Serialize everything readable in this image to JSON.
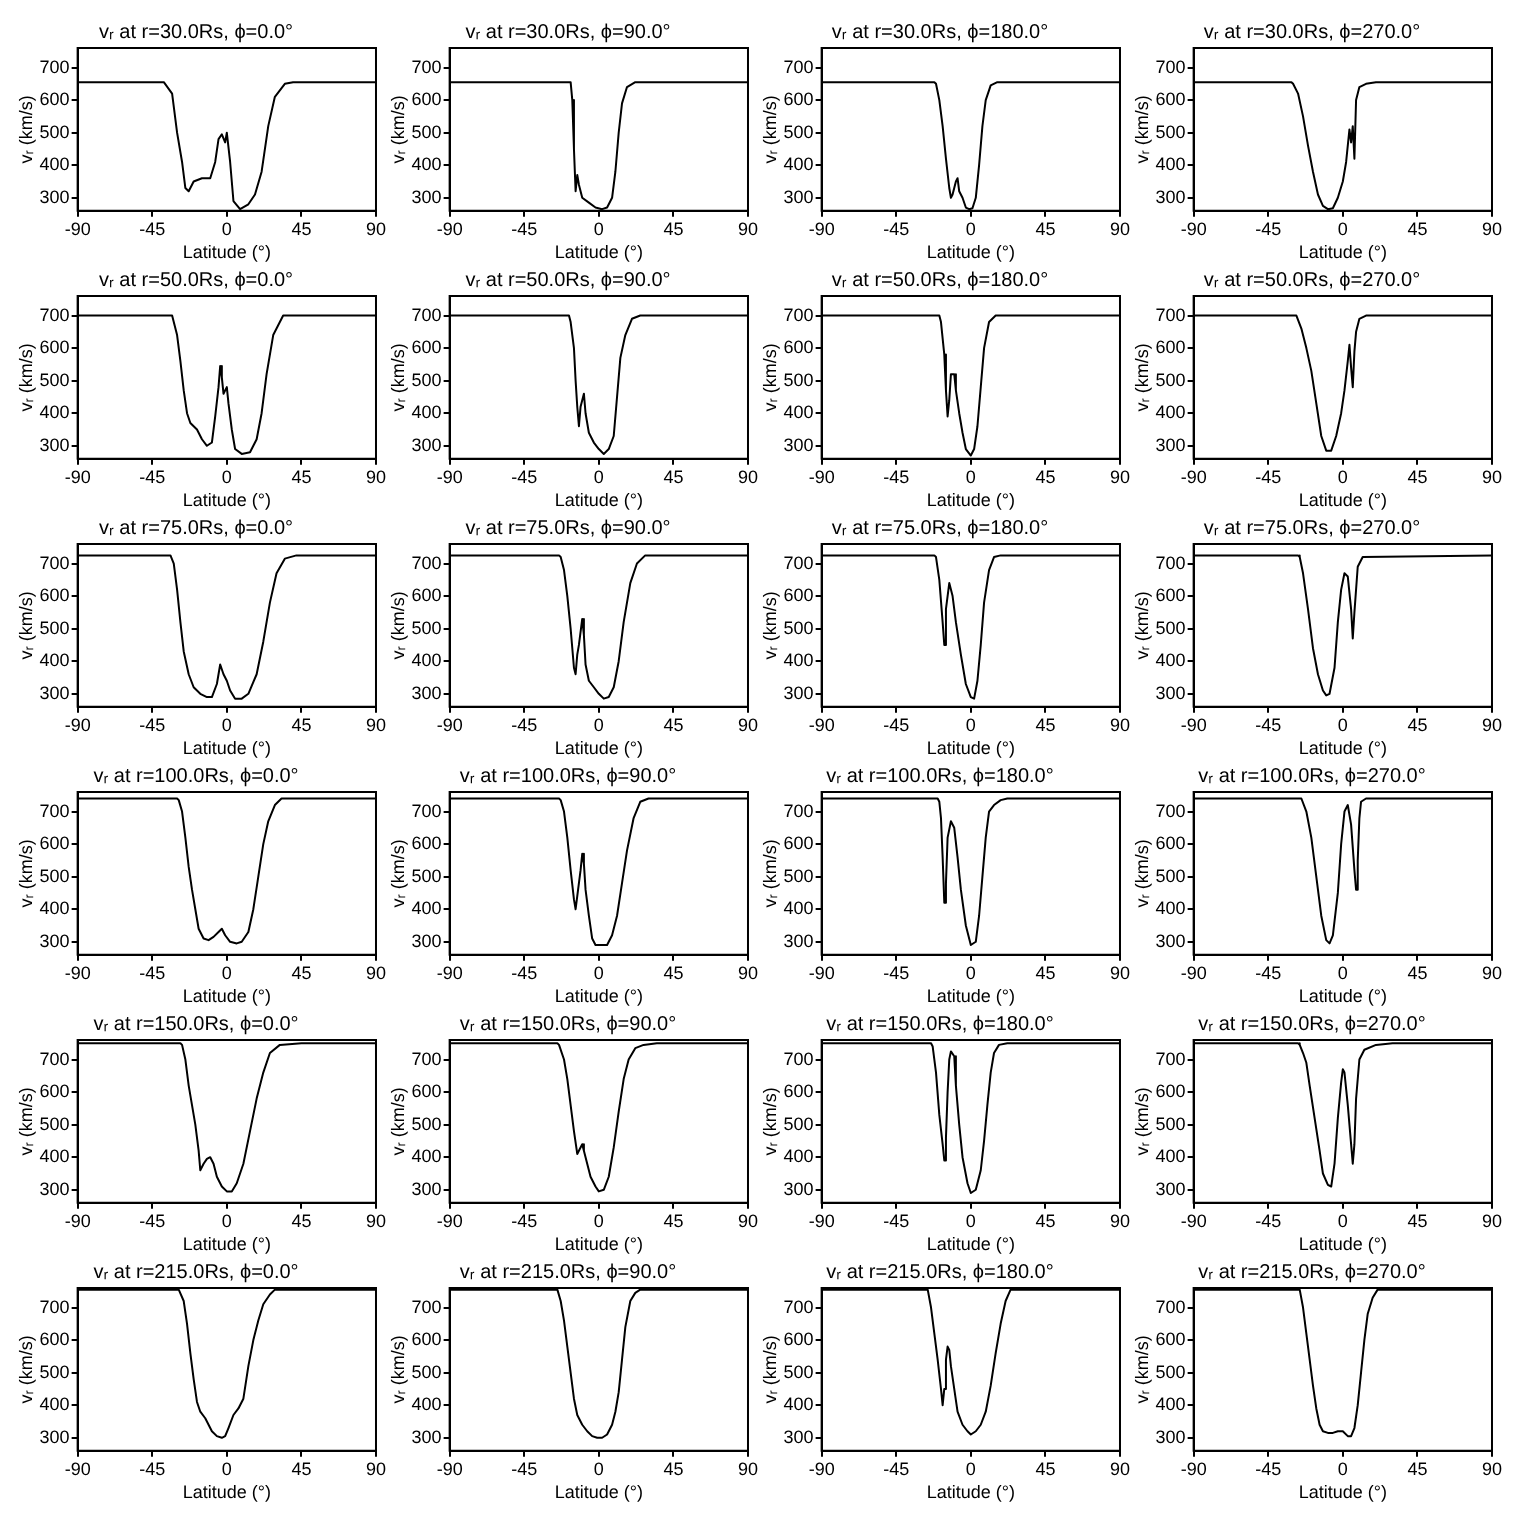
{
  "chart_data": [
    {
      "type": "line",
      "title": "vᵣ at r=30.0Rs, ϕ=0.0°",
      "xlabel": "Latitude (°)",
      "ylabel": "vᵣ (km/s)",
      "xlim": [
        -90,
        90
      ],
      "xticks": [
        -90,
        -45,
        0,
        45,
        90
      ],
      "ylim": [
        260,
        760
      ],
      "yticks": [
        300,
        400,
        500,
        600,
        700
      ],
      "marker": "none",
      "series": [
        {
          "color": "#000000",
          "x": [
            -90,
            -38,
            -33,
            -30,
            -27,
            -25,
            -23,
            -20,
            -15,
            -10,
            -7,
            -5,
            -3,
            -1,
            0,
            2,
            4,
            8,
            13,
            17,
            21,
            25,
            29,
            35,
            40,
            90
          ],
          "values": [
            655,
            655,
            620,
            500,
            410,
            330,
            320,
            350,
            360,
            360,
            410,
            480,
            495,
            470,
            500,
            410,
            290,
            265,
            280,
            310,
            380,
            520,
            610,
            650,
            655,
            655
          ]
        }
      ]
    },
    {
      "type": "line",
      "title": "vᵣ at r=30.0Rs, ϕ=90.0°",
      "xlabel": "Latitude (°)",
      "ylabel": "vᵣ (km/s)",
      "xlim": [
        -90,
        90
      ],
      "xticks": [
        -90,
        -45,
        0,
        45,
        90
      ],
      "ylim": [
        260,
        760
      ],
      "yticks": [
        300,
        400,
        500,
        600,
        700
      ],
      "marker": "none",
      "series": [
        {
          "color": "#000000",
          "x": [
            -90,
            -17,
            -16,
            -15,
            -14,
            -13,
            -12,
            -10,
            -6,
            -2,
            2,
            5,
            8,
            10,
            12,
            14,
            17,
            22,
            90
          ],
          "values": [
            655,
            655,
            600,
            450,
            320,
            370,
            340,
            300,
            285,
            270,
            265,
            270,
            300,
            380,
            500,
            590,
            640,
            655,
            655
          ]
        }
      ]
    },
    {
      "type": "line",
      "title": "vᵣ at r=30.0Rs, ϕ=180.0°",
      "xlabel": "Latitude (°)",
      "ylabel": "vᵣ (km/s)",
      "xlim": [
        -90,
        90
      ],
      "xticks": [
        -90,
        -45,
        0,
        45,
        90
      ],
      "ylim": [
        260,
        760
      ],
      "yticks": [
        300,
        400,
        500,
        600,
        700
      ],
      "marker": "none",
      "series": [
        {
          "color": "#000000",
          "x": [
            -90,
            -22,
            -21,
            -19,
            -17,
            -15,
            -13,
            -12,
            -11,
            -9,
            -8,
            -7,
            -5,
            -3,
            -1,
            1,
            3,
            5,
            7,
            9,
            12,
            16,
            90
          ],
          "values": [
            655,
            655,
            650,
            600,
            520,
            420,
            330,
            300,
            310,
            350,
            360,
            320,
            300,
            270,
            265,
            268,
            300,
            400,
            520,
            600,
            645,
            655,
            655
          ]
        }
      ]
    },
    {
      "type": "line",
      "title": "vᵣ at r=30.0Rs, ϕ=270.0°",
      "xlabel": "Latitude (°)",
      "ylabel": "vᵣ (km/s)",
      "xlim": [
        -90,
        90
      ],
      "xticks": [
        -90,
        -45,
        0,
        45,
        90
      ],
      "ylim": [
        260,
        760
      ],
      "yticks": [
        300,
        400,
        500,
        600,
        700
      ],
      "marker": "none",
      "series": [
        {
          "color": "#000000",
          "x": [
            -90,
            -31,
            -30,
            -27,
            -24,
            -21,
            -18,
            -15,
            -12,
            -9,
            -6,
            -3,
            0,
            2,
            4,
            5,
            6,
            7,
            8,
            10,
            14,
            20,
            90
          ],
          "values": [
            655,
            655,
            650,
            620,
            550,
            460,
            380,
            310,
            275,
            265,
            268,
            300,
            350,
            410,
            510,
            470,
            520,
            420,
            600,
            640,
            650,
            655,
            655
          ]
        }
      ]
    },
    {
      "type": "line",
      "title": "vᵣ at r=50.0Rs, ϕ=0.0°",
      "xlabel": "Latitude (°)",
      "ylabel": "vᵣ (km/s)",
      "xlim": [
        -90,
        90
      ],
      "xticks": [
        -90,
        -45,
        0,
        45,
        90
      ],
      "ylim": [
        260,
        760
      ],
      "yticks": [
        300,
        400,
        500,
        600,
        700
      ],
      "marker": "none",
      "series": [
        {
          "color": "#000000",
          "x": [
            -90,
            -33,
            -30,
            -28,
            -26,
            -24,
            -22,
            -18,
            -15,
            -12,
            -9,
            -7,
            -5,
            -4,
            -3,
            -2,
            0,
            1,
            3,
            5,
            9,
            14,
            18,
            21,
            24,
            28,
            34,
            90
          ],
          "values": [
            700,
            700,
            640,
            560,
            470,
            400,
            370,
            350,
            320,
            300,
            310,
            390,
            480,
            545,
            510,
            460,
            480,
            430,
            350,
            290,
            275,
            280,
            320,
            400,
            520,
            640,
            700,
            700
          ]
        }
      ]
    },
    {
      "type": "line",
      "title": "vᵣ at r=50.0Rs, ϕ=90.0°",
      "xlabel": "Latitude (°)",
      "ylabel": "vᵣ (km/s)",
      "xlim": [
        -90,
        90
      ],
      "xticks": [
        -90,
        -45,
        0,
        45,
        90
      ],
      "ylim": [
        260,
        760
      ],
      "yticks": [
        300,
        400,
        500,
        600,
        700
      ],
      "marker": "none",
      "series": [
        {
          "color": "#000000",
          "x": [
            -90,
            -18,
            -17,
            -15,
            -14,
            -13,
            -12,
            -11,
            -9,
            -8,
            -6,
            -3,
            0,
            3,
            6,
            9,
            11,
            13,
            16,
            20,
            25,
            90
          ],
          "values": [
            700,
            700,
            680,
            600,
            500,
            420,
            360,
            420,
            460,
            400,
            340,
            310,
            290,
            275,
            290,
            330,
            450,
            570,
            640,
            690,
            700,
            700
          ]
        }
      ]
    },
    {
      "type": "line",
      "title": "vᵣ at r=50.0Rs, ϕ=180.0°",
      "xlabel": "Latitude (°)",
      "ylabel": "vᵣ (km/s)",
      "xlim": [
        -90,
        90
      ],
      "xticks": [
        -90,
        -45,
        0,
        45,
        90
      ],
      "ylim": [
        260,
        760
      ],
      "yticks": [
        300,
        400,
        500,
        600,
        700
      ],
      "marker": "none",
      "series": [
        {
          "color": "#000000",
          "x": [
            -90,
            -19,
            -18,
            -16,
            -15,
            -14,
            -13,
            -12,
            -10,
            -9,
            -7,
            -5,
            -3,
            0,
            2,
            4,
            6,
            8,
            11,
            15,
            90
          ],
          "values": [
            700,
            700,
            680,
            580,
            470,
            390,
            440,
            520,
            520,
            470,
            400,
            340,
            290,
            270,
            290,
            360,
            480,
            600,
            680,
            700,
            700
          ]
        }
      ]
    },
    {
      "type": "line",
      "title": "vᵣ at r=50.0Rs, ϕ=270.0°",
      "xlabel": "Latitude (°)",
      "ylabel": "vᵣ (km/s)",
      "xlim": [
        -90,
        90
      ],
      "xticks": [
        -90,
        -45,
        0,
        45,
        90
      ],
      "ylim": [
        260,
        760
      ],
      "yticks": [
        300,
        400,
        500,
        600,
        700
      ],
      "marker": "none",
      "series": [
        {
          "color": "#000000",
          "x": [
            -90,
            -28,
            -25,
            -22,
            -19,
            -16,
            -13,
            -10,
            -7,
            -4,
            -1,
            1,
            3,
            4,
            5,
            6,
            7,
            8,
            10,
            14,
            90
          ],
          "values": [
            700,
            700,
            660,
            600,
            530,
            430,
            330,
            285,
            285,
            330,
            400,
            470,
            560,
            610,
            540,
            480,
            590,
            650,
            690,
            700,
            700
          ]
        }
      ]
    },
    {
      "type": "line",
      "title": "vᵣ at r=75.0Rs, ϕ=0.0°",
      "xlabel": "Latitude (°)",
      "ylabel": "vᵣ (km/s)",
      "xlim": [
        -90,
        90
      ],
      "xticks": [
        -90,
        -45,
        0,
        45,
        90
      ],
      "ylim": [
        260,
        760
      ],
      "yticks": [
        300,
        400,
        500,
        600,
        700
      ],
      "marker": "none",
      "series": [
        {
          "color": "#000000",
          "x": [
            -90,
            -34,
            -32,
            -30,
            -28,
            -26,
            -23,
            -20,
            -16,
            -12,
            -9,
            -6,
            -4,
            -2,
            0,
            2,
            5,
            9,
            13,
            18,
            22,
            26,
            30,
            35,
            42,
            90
          ],
          "values": [
            725,
            725,
            700,
            620,
            520,
            430,
            360,
            320,
            300,
            290,
            290,
            330,
            390,
            360,
            340,
            310,
            285,
            285,
            300,
            360,
            460,
            580,
            670,
            715,
            725,
            725
          ]
        }
      ]
    },
    {
      "type": "line",
      "title": "vᵣ at r=75.0Rs, ϕ=90.0°",
      "xlabel": "Latitude (°)",
      "ylabel": "vᵣ (km/s)",
      "xlim": [
        -90,
        90
      ],
      "xticks": [
        -90,
        -45,
        0,
        45,
        90
      ],
      "ylim": [
        260,
        760
      ],
      "yticks": [
        300,
        400,
        500,
        600,
        700
      ],
      "marker": "none",
      "series": [
        {
          "color": "#000000",
          "x": [
            -90,
            -24,
            -23,
            -21,
            -19,
            -17,
            -15,
            -14,
            -13,
            -12,
            -10,
            -9,
            -8,
            -6,
            -3,
            0,
            3,
            6,
            9,
            12,
            15,
            19,
            23,
            28,
            90
          ],
          "values": [
            725,
            725,
            720,
            680,
            600,
            500,
            380,
            360,
            420,
            450,
            530,
            480,
            390,
            340,
            320,
            300,
            285,
            290,
            320,
            400,
            520,
            640,
            700,
            725,
            725
          ]
        }
      ]
    },
    {
      "type": "line",
      "title": "vᵣ at r=75.0Rs, ϕ=180.0°",
      "xlabel": "Latitude (°)",
      "ylabel": "vᵣ (km/s)",
      "xlim": [
        -90,
        90
      ],
      "xticks": [
        -90,
        -45,
        0,
        45,
        90
      ],
      "ylim": [
        260,
        760
      ],
      "yticks": [
        300,
        400,
        500,
        600,
        700
      ],
      "marker": "none",
      "series": [
        {
          "color": "#000000",
          "x": [
            -90,
            -22,
            -21,
            -19,
            -17,
            -16,
            -15,
            -13,
            -11,
            -9,
            -6,
            -3,
            0,
            2,
            4,
            6,
            8,
            11,
            14,
            18,
            90
          ],
          "values": [
            725,
            725,
            720,
            650,
            520,
            450,
            560,
            640,
            600,
            520,
            420,
            330,
            290,
            285,
            340,
            450,
            580,
            680,
            720,
            725,
            725
          ]
        }
      ]
    },
    {
      "type": "line",
      "title": "vᵣ at r=75.0Rs, ϕ=270.0°",
      "xlabel": "Latitude (°)",
      "ylabel": "vᵣ (km/s)",
      "xlim": [
        -90,
        90
      ],
      "xticks": [
        -90,
        -45,
        0,
        45,
        90
      ],
      "ylim": [
        260,
        760
      ],
      "yticks": [
        300,
        400,
        500,
        600,
        700
      ],
      "marker": "none",
      "series": [
        {
          "color": "#000000",
          "x": [
            -90,
            -27,
            -26,
            -24,
            -21,
            -18,
            -15,
            -12,
            -10,
            -8,
            -5,
            -3,
            -1,
            1,
            3,
            5,
            6,
            7,
            9,
            12,
            90
          ],
          "values": [
            725,
            725,
            720,
            670,
            560,
            440,
            360,
            310,
            295,
            300,
            380,
            520,
            620,
            670,
            660,
            560,
            470,
            550,
            690,
            720,
            725
          ]
        }
      ]
    },
    {
      "type": "line",
      "title": "vᵣ at r=100.0Rs, ϕ=0.0°",
      "xlabel": "Latitude (°)",
      "ylabel": "vᵣ (km/s)",
      "xlim": [
        -90,
        90
      ],
      "xticks": [
        -90,
        -45,
        0,
        45,
        90
      ],
      "ylim": [
        260,
        760
      ],
      "yticks": [
        300,
        400,
        500,
        600,
        700
      ],
      "marker": "none",
      "series": [
        {
          "color": "#000000",
          "x": [
            -90,
            -30,
            -29,
            -27,
            -25,
            -23,
            -21,
            -19,
            -17,
            -14,
            -11,
            -8,
            -5,
            -3,
            -1,
            2,
            6,
            9,
            13,
            16,
            19,
            22,
            25,
            29,
            33,
            90
          ],
          "values": [
            740,
            740,
            735,
            700,
            620,
            530,
            460,
            400,
            340,
            310,
            305,
            315,
            330,
            340,
            320,
            300,
            295,
            300,
            330,
            400,
            500,
            600,
            670,
            720,
            740,
            740
          ]
        }
      ]
    },
    {
      "type": "line",
      "title": "vᵣ at r=100.0Rs, ϕ=90.0°",
      "xlabel": "Latitude (°)",
      "ylabel": "vᵣ (km/s)",
      "xlim": [
        -90,
        90
      ],
      "xticks": [
        -90,
        -45,
        0,
        45,
        90
      ],
      "ylim": [
        260,
        760
      ],
      "yticks": [
        300,
        400,
        500,
        600,
        700
      ],
      "marker": "none",
      "series": [
        {
          "color": "#000000",
          "x": [
            -90,
            -24,
            -23,
            -21,
            -19,
            -17,
            -15,
            -14,
            -13,
            -11,
            -10,
            -9,
            -8,
            -6,
            -4,
            -2,
            2,
            5,
            8,
            11,
            14,
            17,
            21,
            25,
            30,
            90
          ],
          "values": [
            740,
            740,
            735,
            700,
            620,
            520,
            430,
            400,
            440,
            520,
            570,
            540,
            460,
            380,
            310,
            290,
            290,
            290,
            320,
            380,
            480,
            580,
            680,
            730,
            740,
            740
          ]
        }
      ]
    },
    {
      "type": "line",
      "title": "vᵣ at r=100.0Rs, ϕ=180.0°",
      "xlabel": "Latitude (°)",
      "ylabel": "vᵣ (km/s)",
      "xlim": [
        -90,
        90
      ],
      "xticks": [
        -90,
        -45,
        0,
        45,
        90
      ],
      "ylim": [
        260,
        760
      ],
      "yticks": [
        300,
        400,
        500,
        600,
        700
      ],
      "marker": "none",
      "series": [
        {
          "color": "#000000",
          "x": [
            -90,
            -20,
            -19,
            -18,
            -17,
            -16,
            -15,
            -14,
            -12,
            -10,
            -8,
            -6,
            -3,
            0,
            3,
            5,
            7,
            9,
            11,
            14,
            18,
            22,
            90
          ],
          "values": [
            740,
            740,
            730,
            680,
            560,
            420,
            480,
            620,
            670,
            650,
            560,
            460,
            350,
            290,
            300,
            380,
            500,
            620,
            700,
            720,
            735,
            740,
            740
          ]
        }
      ]
    },
    {
      "type": "line",
      "title": "vᵣ at r=100.0Rs, ϕ=270.0°",
      "xlabel": "Latitude (°)",
      "ylabel": "vᵣ (km/s)",
      "xlim": [
        -90,
        90
      ],
      "xticks": [
        -90,
        -45,
        0,
        45,
        90
      ],
      "ylim": [
        260,
        760
      ],
      "yticks": [
        300,
        400,
        500,
        600,
        700
      ],
      "marker": "none",
      "series": [
        {
          "color": "#000000",
          "x": [
            -90,
            -25,
            -22,
            -19,
            -16,
            -13,
            -10,
            -8,
            -6,
            -3,
            -1,
            1,
            3,
            5,
            7,
            8,
            9,
            10,
            11,
            14,
            90
          ],
          "values": [
            740,
            740,
            700,
            620,
            500,
            380,
            305,
            295,
            320,
            450,
            600,
            700,
            720,
            660,
            520,
            460,
            550,
            680,
            730,
            740,
            740
          ]
        }
      ]
    },
    {
      "type": "line",
      "title": "vᵣ at r=150.0Rs, ϕ=0.0°",
      "xlabel": "Latitude (°)",
      "ylabel": "vᵣ (km/s)",
      "xlim": [
        -90,
        90
      ],
      "xticks": [
        -90,
        -45,
        0,
        45,
        90
      ],
      "ylim": [
        260,
        760
      ],
      "yticks": [
        300,
        400,
        500,
        600,
        700
      ],
      "marker": "none",
      "series": [
        {
          "color": "#000000",
          "x": [
            -90,
            -28,
            -27,
            -25,
            -23,
            -21,
            -19,
            -17,
            -16,
            -14,
            -12,
            -10,
            -8,
            -6,
            -3,
            0,
            3,
            6,
            10,
            14,
            18,
            22,
            26,
            32,
            45,
            90
          ],
          "values": [
            750,
            750,
            745,
            700,
            620,
            560,
            500,
            420,
            360,
            380,
            395,
            400,
            380,
            340,
            310,
            295,
            295,
            320,
            380,
            480,
            580,
            660,
            720,
            745,
            750,
            750
          ]
        }
      ]
    },
    {
      "type": "line",
      "title": "vᵣ at r=150.0Rs, ϕ=90.0°",
      "xlabel": "Latitude (°)",
      "ylabel": "vᵣ (km/s)",
      "xlim": [
        -90,
        90
      ],
      "xticks": [
        -90,
        -45,
        0,
        45,
        90
      ],
      "ylim": [
        260,
        760
      ],
      "yticks": [
        300,
        400,
        500,
        600,
        700
      ],
      "marker": "none",
      "series": [
        {
          "color": "#000000",
          "x": [
            -90,
            -25,
            -24,
            -21,
            -19,
            -17,
            -15,
            -13,
            -12,
            -10,
            -9,
            -7,
            -5,
            -2,
            0,
            3,
            6,
            9,
            12,
            15,
            18,
            22,
            27,
            35,
            90
          ],
          "values": [
            750,
            750,
            745,
            700,
            640,
            560,
            480,
            410,
            420,
            440,
            420,
            380,
            340,
            310,
            295,
            300,
            340,
            430,
            540,
            640,
            700,
            735,
            745,
            750,
            750
          ]
        }
      ]
    },
    {
      "type": "line",
      "title": "vᵣ at r=150.0Rs, ϕ=180.0°",
      "xlabel": "Latitude (°)",
      "ylabel": "vᵣ (km/s)",
      "xlim": [
        -90,
        90
      ],
      "xticks": [
        -90,
        -45,
        0,
        45,
        90
      ],
      "ylim": [
        260,
        760
      ],
      "yticks": [
        300,
        400,
        500,
        600,
        700
      ],
      "marker": "none",
      "series": [
        {
          "color": "#000000",
          "x": [
            -90,
            -24,
            -23,
            -21,
            -19,
            -17,
            -16,
            -15,
            -14,
            -13,
            -12,
            -10,
            -9,
            -7,
            -5,
            -2,
            0,
            3,
            6,
            8,
            10,
            12,
            14,
            17,
            22,
            90
          ],
          "values": [
            750,
            750,
            740,
            660,
            530,
            440,
            390,
            460,
            600,
            700,
            725,
            710,
            620,
            500,
            400,
            320,
            290,
            300,
            360,
            450,
            560,
            660,
            720,
            745,
            750,
            750
          ]
        }
      ]
    },
    {
      "type": "line",
      "title": "vᵣ at r=150.0Rs, ϕ=270.0°",
      "xlabel": "Latitude (°)",
      "ylabel": "vᵣ (km/s)",
      "xlim": [
        -90,
        90
      ],
      "xticks": [
        -90,
        -45,
        0,
        45,
        90
      ],
      "ylim": [
        260,
        760
      ],
      "yticks": [
        300,
        400,
        500,
        600,
        700
      ],
      "marker": "none",
      "series": [
        {
          "color": "#000000",
          "x": [
            -90,
            -27,
            -26,
            -24,
            -22,
            -20,
            -17,
            -14,
            -12,
            -9,
            -7,
            -5,
            -3,
            -1,
            0,
            1,
            3,
            5,
            6,
            7,
            8,
            10,
            13,
            20,
            30,
            90
          ],
          "values": [
            750,
            750,
            745,
            720,
            690,
            620,
            520,
            420,
            350,
            315,
            310,
            380,
            520,
            630,
            670,
            660,
            560,
            440,
            380,
            440,
            580,
            700,
            730,
            745,
            750,
            750
          ]
        }
      ]
    },
    {
      "type": "line",
      "title": "vᵣ at r=215.0Rs, ϕ=0.0°",
      "xlabel": "Latitude (°)",
      "ylabel": "vᵣ (km/s)",
      "xlim": [
        -90,
        90
      ],
      "xticks": [
        -90,
        -45,
        0,
        45,
        90
      ],
      "ylim": [
        260,
        760
      ],
      "yticks": [
        300,
        400,
        500,
        600,
        700
      ],
      "marker": "none",
      "series": [
        {
          "color": "#000000",
          "x": [
            -90,
            -29,
            -26,
            -24,
            -22,
            -20,
            -18,
            -16,
            -13,
            -9,
            -6,
            -3,
            -1,
            1,
            4,
            7,
            10,
            13,
            16,
            19,
            22,
            26,
            29,
            90
          ],
          "values": [
            755,
            755,
            720,
            650,
            560,
            480,
            410,
            380,
            360,
            320,
            305,
            300,
            305,
            330,
            370,
            390,
            420,
            520,
            600,
            660,
            710,
            740,
            755,
            755
          ]
        }
      ]
    },
    {
      "type": "line",
      "title": "vᵣ at r=215.0Rs, ϕ=90.0°",
      "xlabel": "Latitude (°)",
      "ylabel": "vᵣ (km/s)",
      "xlim": [
        -90,
        90
      ],
      "xticks": [
        -90,
        -45,
        0,
        45,
        90
      ],
      "ylim": [
        260,
        760
      ],
      "yticks": [
        300,
        400,
        500,
        600,
        700
      ],
      "marker": "none",
      "series": [
        {
          "color": "#000000",
          "x": [
            -90,
            -25,
            -23,
            -21,
            -19,
            -17,
            -15,
            -13,
            -10,
            -7,
            -4,
            -1,
            2,
            5,
            8,
            10,
            12,
            14,
            16,
            19,
            22,
            25,
            90
          ],
          "values": [
            755,
            755,
            720,
            660,
            580,
            500,
            420,
            370,
            340,
            320,
            305,
            300,
            300,
            310,
            340,
            380,
            440,
            540,
            640,
            720,
            745,
            755,
            755
          ]
        }
      ]
    },
    {
      "type": "line",
      "title": "vᵣ at r=215.0Rs, ϕ=180.0°",
      "xlabel": "Latitude (°)",
      "ylabel": "vᵣ (km/s)",
      "xlim": [
        -90,
        90
      ],
      "xticks": [
        -90,
        -45,
        0,
        45,
        90
      ],
      "ylim": [
        260,
        760
      ],
      "yticks": [
        300,
        400,
        500,
        600,
        700
      ],
      "marker": "none",
      "series": [
        {
          "color": "#000000",
          "x": [
            -90,
            -26,
            -24,
            -22,
            -20,
            -18,
            -17,
            -16,
            -15,
            -14,
            -13,
            -12,
            -10,
            -8,
            -5,
            -2,
            0,
            3,
            6,
            9,
            12,
            15,
            18,
            21,
            24,
            90
          ],
          "values": [
            755,
            755,
            700,
            620,
            540,
            450,
            400,
            450,
            540,
            580,
            570,
            520,
            450,
            380,
            340,
            320,
            310,
            320,
            340,
            380,
            460,
            560,
            650,
            720,
            755,
            755
          ]
        }
      ]
    },
    {
      "type": "line",
      "title": "vᵣ at r=215.0Rs, ϕ=270.0°",
      "xlabel": "Latitude (°)",
      "ylabel": "vᵣ (km/s)",
      "xlim": [
        -90,
        90
      ],
      "xticks": [
        -90,
        -45,
        0,
        45,
        90
      ],
      "ylim": [
        260,
        760
      ],
      "yticks": [
        300,
        400,
        500,
        600,
        700
      ],
      "marker": "none",
      "series": [
        {
          "color": "#000000",
          "x": [
            -90,
            -26,
            -24,
            -22,
            -20,
            -18,
            -16,
            -14,
            -12,
            -9,
            -6,
            -3,
            0,
            3,
            5,
            7,
            9,
            11,
            13,
            15,
            18,
            21,
            90
          ],
          "values": [
            755,
            755,
            700,
            620,
            540,
            460,
            390,
            340,
            320,
            315,
            315,
            320,
            320,
            305,
            305,
            330,
            400,
            500,
            600,
            680,
            730,
            755,
            755
          ]
        }
      ]
    }
  ]
}
